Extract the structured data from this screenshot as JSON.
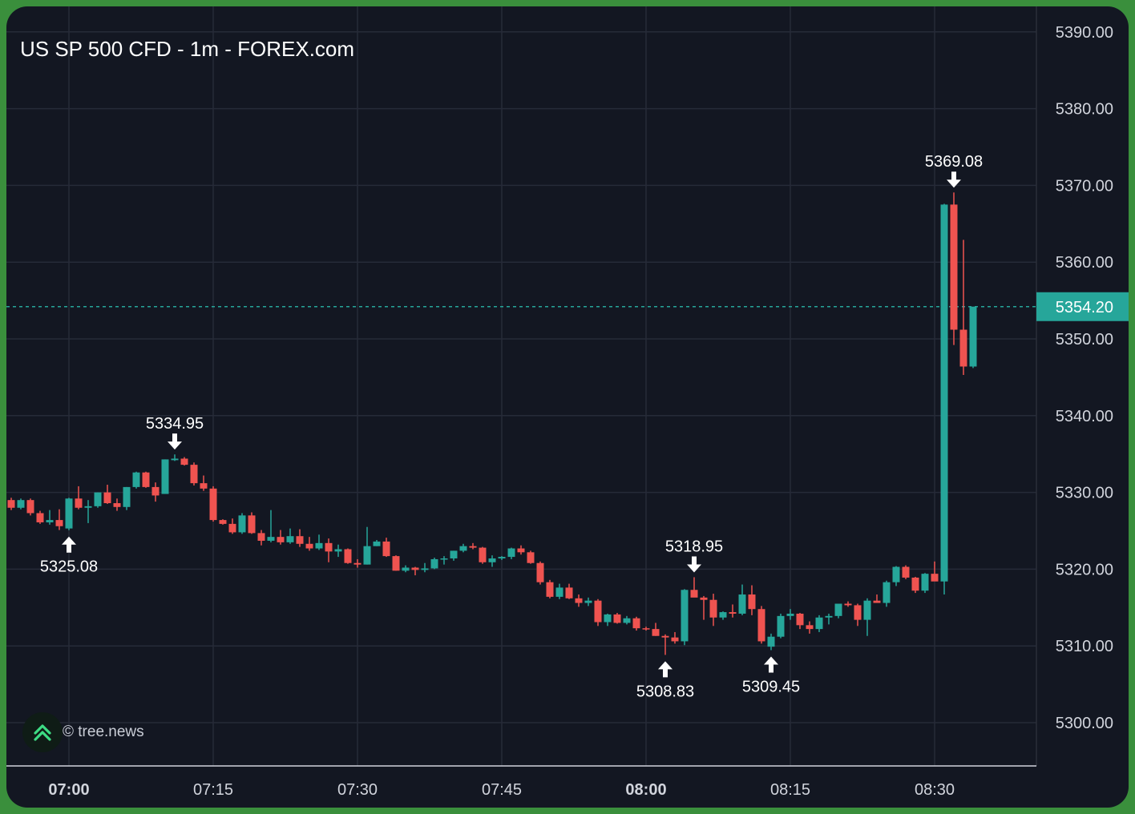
{
  "title": "US SP 500 CFD - 1m - FOREX.com",
  "watermark": {
    "text": "© tree.news",
    "icon": "tree-news-chevron-logo-icon"
  },
  "colors": {
    "up": "#26a69a",
    "down": "#ef5350",
    "background": "#131722",
    "grid": "#262b38",
    "text": "#d1d4dc",
    "price_label_bg": "#26a69a",
    "border": "#3a8f3c"
  },
  "chart_data": {
    "type": "candlestick",
    "title": "US SP 500 CFD - 1m - FOREX.com",
    "ylim": [
      5294,
      5392
    ],
    "y_ticks": [
      5300,
      5310,
      5320,
      5330,
      5340,
      5350,
      5360,
      5370,
      5380,
      5390
    ],
    "y_tick_labels": [
      "5300.00",
      "5310.00",
      "5320.00",
      "5330.00",
      "5340.00",
      "5350.00",
      "5360.00",
      "5370.00",
      "5380.00",
      "5390.00"
    ],
    "x_ticks": [
      {
        "label": "07:00",
        "minute": 420,
        "bold": true
      },
      {
        "label": "07:15",
        "minute": 435,
        "bold": false
      },
      {
        "label": "07:30",
        "minute": 450,
        "bold": false
      },
      {
        "label": "07:45",
        "minute": 465,
        "bold": false
      },
      {
        "label": "08:00",
        "minute": 480,
        "bold": true
      },
      {
        "label": "08:15",
        "minute": 495,
        "bold": false
      },
      {
        "label": "08:30",
        "minute": 510,
        "bold": false
      }
    ],
    "time_start": "06:54",
    "interval": "1m",
    "ohlc": [
      [
        5329.0,
        5329.3,
        5327.7,
        5328.0
      ],
      [
        5328.0,
        5329.2,
        5327.8,
        5329.0
      ],
      [
        5329.0,
        5329.2,
        5327.0,
        5327.3
      ],
      [
        5327.3,
        5327.6,
        5325.9,
        5326.1
      ],
      [
        5326.1,
        5327.7,
        5325.8,
        5326.4
      ],
      [
        5326.4,
        5327.8,
        5325.1,
        5325.6
      ],
      [
        5325.3,
        5329.3,
        5325.08,
        5329.2
      ],
      [
        5329.2,
        5330.8,
        5327.8,
        5328.0
      ],
      [
        5328.0,
        5329.0,
        5326.0,
        5328.2
      ],
      [
        5328.2,
        5330.0,
        5328.0,
        5330.0
      ],
      [
        5330.0,
        5331.0,
        5328.5,
        5328.6
      ],
      [
        5328.6,
        5329.2,
        5327.6,
        5328.1
      ],
      [
        5328.1,
        5330.7,
        5327.7,
        5330.7
      ],
      [
        5330.7,
        5332.7,
        5330.5,
        5332.6
      ],
      [
        5332.6,
        5332.7,
        5330.6,
        5330.7
      ],
      [
        5330.7,
        5331.3,
        5328.8,
        5329.6
      ],
      [
        5329.8,
        5334.3,
        5329.8,
        5334.3
      ],
      [
        5334.2,
        5334.95,
        5334.1,
        5334.4
      ],
      [
        5334.4,
        5334.6,
        5333.5,
        5333.6
      ],
      [
        5333.6,
        5333.9,
        5330.9,
        5331.2
      ],
      [
        5331.2,
        5332.2,
        5330.2,
        5330.5
      ],
      [
        5330.5,
        5330.8,
        5326.2,
        5326.4
      ],
      [
        5326.4,
        5326.5,
        5325.8,
        5325.9
      ],
      [
        5325.9,
        5326.6,
        5324.6,
        5324.8
      ],
      [
        5324.8,
        5327.3,
        5324.6,
        5327.0
      ],
      [
        5327.0,
        5327.4,
        5324.6,
        5324.7
      ],
      [
        5324.7,
        5325.1,
        5323.1,
        5323.7
      ],
      [
        5323.7,
        5327.7,
        5323.5,
        5324.2
      ],
      [
        5324.2,
        5325.1,
        5323.2,
        5323.5
      ],
      [
        5323.5,
        5325.3,
        5323.3,
        5324.3
      ],
      [
        5324.3,
        5325.2,
        5322.9,
        5323.3
      ],
      [
        5323.3,
        5324.2,
        5322.4,
        5322.7
      ],
      [
        5322.7,
        5324.5,
        5322.5,
        5323.4
      ],
      [
        5323.4,
        5324.0,
        5320.9,
        5322.3
      ],
      [
        5322.3,
        5323.2,
        5321.6,
        5322.6
      ],
      [
        5322.6,
        5322.7,
        5320.7,
        5320.8
      ],
      [
        5320.8,
        5321.3,
        5320.2,
        5320.6
      ],
      [
        5320.6,
        5325.5,
        5320.6,
        5323.0
      ],
      [
        5323.0,
        5323.8,
        5323.0,
        5323.6
      ],
      [
        5323.6,
        5324.1,
        5321.6,
        5321.7
      ],
      [
        5321.7,
        5321.8,
        5319.8,
        5319.8
      ],
      [
        5319.8,
        5320.5,
        5319.6,
        5320.2
      ],
      [
        5320.2,
        5320.3,
        5319.2,
        5319.9
      ],
      [
        5319.9,
        5320.8,
        5319.6,
        5320.1
      ],
      [
        5320.1,
        5321.5,
        5320.0,
        5321.3
      ],
      [
        5321.3,
        5321.7,
        5320.6,
        5321.4
      ],
      [
        5321.4,
        5322.4,
        5321.1,
        5322.4
      ],
      [
        5322.4,
        5323.3,
        5322.2,
        5323.0
      ],
      [
        5323.0,
        5323.4,
        5322.6,
        5322.8
      ],
      [
        5322.8,
        5322.9,
        5320.7,
        5320.9
      ],
      [
        5320.9,
        5321.8,
        5320.3,
        5321.4
      ],
      [
        5321.4,
        5321.7,
        5321.2,
        5321.6
      ],
      [
        5321.6,
        5322.8,
        5321.3,
        5322.7
      ],
      [
        5322.7,
        5323.1,
        5321.9,
        5322.2
      ],
      [
        5322.2,
        5322.4,
        5320.7,
        5320.8
      ],
      [
        5320.8,
        5321.0,
        5318.0,
        5318.3
      ],
      [
        5318.3,
        5318.6,
        5316.2,
        5316.4
      ],
      [
        5316.4,
        5318.1,
        5316.1,
        5317.6
      ],
      [
        5317.6,
        5318.1,
        5316.1,
        5316.2
      ],
      [
        5316.2,
        5316.7,
        5315.1,
        5315.6
      ],
      [
        5315.6,
        5316.3,
        5315.2,
        5315.9
      ],
      [
        5315.9,
        5316.1,
        5312.6,
        5313.1
      ],
      [
        5313.1,
        5314.2,
        5312.6,
        5314.1
      ],
      [
        5314.1,
        5314.3,
        5312.9,
        5313.0
      ],
      [
        5313.0,
        5313.9,
        5312.8,
        5313.6
      ],
      [
        5313.6,
        5313.8,
        5312.0,
        5312.3
      ],
      [
        5312.3,
        5312.5,
        5312.0,
        5312.2
      ],
      [
        5312.2,
        5313.0,
        5311.3,
        5311.3
      ],
      [
        5311.3,
        5311.5,
        5308.83,
        5311.1
      ],
      [
        5311.1,
        5311.8,
        5310.3,
        5310.6
      ],
      [
        5310.6,
        5317.4,
        5310.1,
        5317.3
      ],
      [
        5317.3,
        5318.95,
        5316.4,
        5316.3
      ],
      [
        5316.3,
        5316.5,
        5313.4,
        5316.0
      ],
      [
        5316.0,
        5316.8,
        5312.6,
        5313.7
      ],
      [
        5313.7,
        5314.5,
        5313.4,
        5314.4
      ],
      [
        5314.4,
        5315.4,
        5313.7,
        5314.2
      ],
      [
        5314.2,
        5318.0,
        5314.0,
        5316.7
      ],
      [
        5316.7,
        5317.9,
        5314.0,
        5314.8
      ],
      [
        5314.8,
        5315.2,
        5310.3,
        5310.6
      ],
      [
        5309.9,
        5311.6,
        5309.45,
        5311.2
      ],
      [
        5311.2,
        5314.2,
        5311.0,
        5313.9
      ],
      [
        5313.9,
        5314.8,
        5313.4,
        5314.2
      ],
      [
        5314.2,
        5314.3,
        5312.2,
        5312.7
      ],
      [
        5312.7,
        5313.2,
        5311.6,
        5312.2
      ],
      [
        5312.2,
        5314.0,
        5311.8,
        5313.7
      ],
      [
        5313.7,
        5314.2,
        5312.8,
        5313.9
      ],
      [
        5313.9,
        5315.4,
        5313.6,
        5315.5
      ],
      [
        5315.5,
        5315.8,
        5315.1,
        5315.3
      ],
      [
        5315.3,
        5315.5,
        5312.6,
        5313.4
      ],
      [
        5313.4,
        5316.2,
        5311.3,
        5315.9
      ],
      [
        5315.9,
        5316.7,
        5315.7,
        5315.6
      ],
      [
        5315.6,
        5318.5,
        5315.1,
        5318.3
      ],
      [
        5318.3,
        5320.4,
        5317.8,
        5320.3
      ],
      [
        5320.3,
        5320.5,
        5318.7,
        5318.9
      ],
      [
        5318.9,
        5319.0,
        5316.9,
        5317.2
      ],
      [
        5317.2,
        5319.5,
        5316.9,
        5319.4
      ],
      [
        5319.4,
        5321.0,
        5318.5,
        5318.4
      ],
      [
        5318.4,
        5367.6,
        5316.7,
        5367.5
      ],
      [
        5367.5,
        5369.08,
        5349.2,
        5351.2
      ],
      [
        5351.2,
        5362.9,
        5345.3,
        5346.4
      ],
      [
        5346.4,
        5354.2,
        5346.2,
        5354.2
      ]
    ],
    "annotations": [
      {
        "label": "5325.08",
        "index": 6,
        "type": "low"
      },
      {
        "label": "5334.95",
        "index": 17,
        "type": "high"
      },
      {
        "label": "5308.83",
        "index": 68,
        "type": "low"
      },
      {
        "label": "5318.95",
        "index": 71,
        "type": "high"
      },
      {
        "label": "5309.45",
        "index": 79,
        "type": "low"
      },
      {
        "label": "5369.08",
        "index": 98,
        "type": "high"
      }
    ],
    "last_price": 5354.2,
    "last_price_label": "5354.20",
    "grid": true
  }
}
